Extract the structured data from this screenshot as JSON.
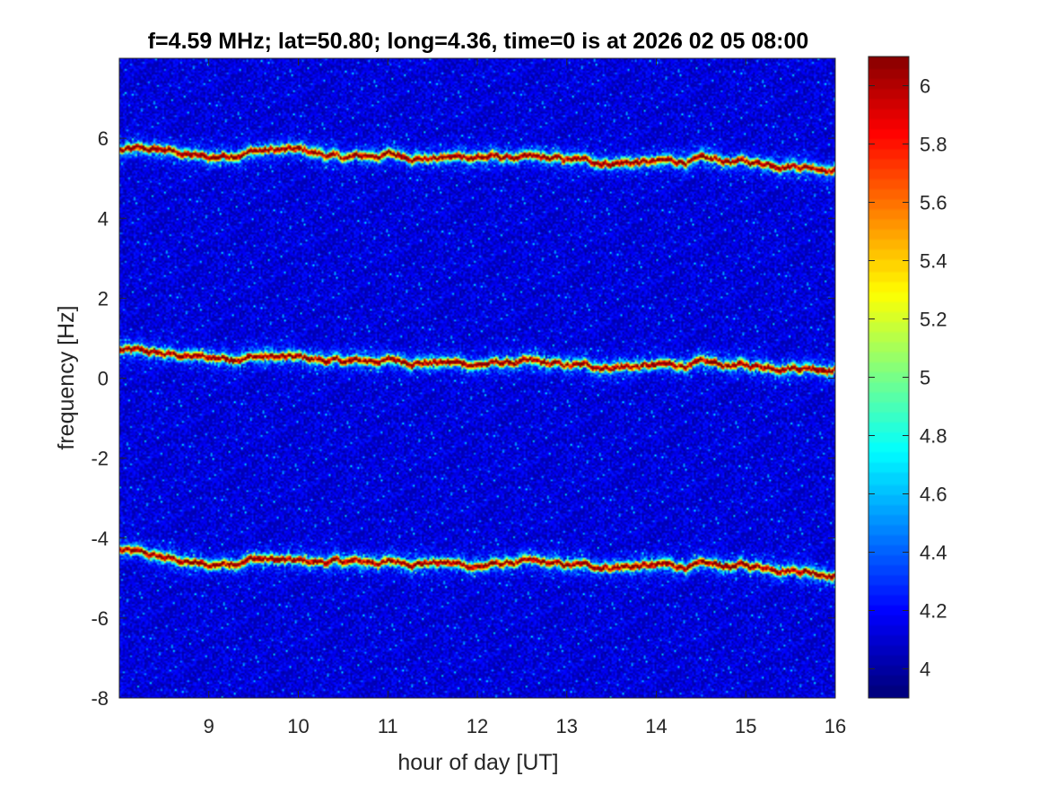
{
  "chart_data": {
    "type": "heatmap",
    "title": "f=4.59 MHz;  lat=50.80; long=4.36, time=0 is at 2026 02 05 08:00",
    "xlabel": "hour of day [UT]",
    "ylabel": "frequency [Hz]",
    "xlim": [
      8,
      16
    ],
    "ylim": [
      -8,
      8
    ],
    "xticks": [
      9,
      10,
      11,
      12,
      13,
      14,
      15,
      16
    ],
    "yticks": [
      -8,
      -6,
      -4,
      -2,
      0,
      2,
      4,
      6
    ],
    "colormap": "jet",
    "clim": [
      3.9,
      6.1
    ],
    "colorbar_ticks": [
      4,
      4.2,
      4.4,
      4.6,
      4.8,
      5,
      5.2,
      5.4,
      5.6,
      5.8,
      6
    ],
    "background_level": 4.1,
    "traces": [
      {
        "description": "upper trace",
        "x": [
          8.0,
          8.5,
          9.0,
          9.5,
          10.0,
          10.5,
          11.0,
          11.5,
          12.0,
          12.5,
          13.0,
          13.5,
          14.0,
          14.5,
          15.0,
          15.5,
          16.0
        ],
        "y": [
          5.7,
          5.7,
          5.5,
          5.7,
          5.7,
          5.5,
          5.6,
          5.5,
          5.55,
          5.5,
          5.45,
          5.4,
          5.4,
          5.45,
          5.4,
          5.35,
          5.25
        ]
      },
      {
        "description": "middle trace",
        "x": [
          8.0,
          8.5,
          9.0,
          9.5,
          10.0,
          10.5,
          11.0,
          11.5,
          12.0,
          12.5,
          13.0,
          13.5,
          14.0,
          14.5,
          15.0,
          15.5,
          16.0
        ],
        "y": [
          0.7,
          0.6,
          0.5,
          0.55,
          0.5,
          0.4,
          0.45,
          0.4,
          0.35,
          0.4,
          0.3,
          0.3,
          0.3,
          0.35,
          0.3,
          0.3,
          0.25
        ]
      },
      {
        "description": "lower trace",
        "x": [
          8.0,
          8.5,
          9.0,
          9.5,
          10.0,
          10.5,
          11.0,
          11.5,
          12.0,
          12.5,
          13.0,
          13.5,
          14.0,
          14.5,
          15.0,
          15.5,
          16.0
        ],
        "y": [
          -4.3,
          -4.5,
          -4.7,
          -4.5,
          -4.6,
          -4.6,
          -4.6,
          -4.6,
          -4.7,
          -4.6,
          -4.7,
          -4.7,
          -4.7,
          -4.7,
          -4.7,
          -4.75,
          -4.9
        ]
      }
    ]
  }
}
